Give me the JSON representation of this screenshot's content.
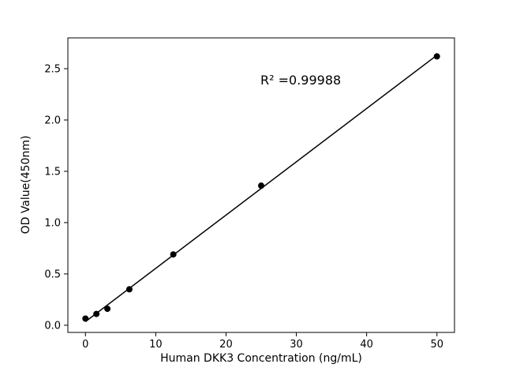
{
  "chart_data": {
    "type": "scatter",
    "title": "",
    "xlabel": "Human DKK3 Concentration (ng/mL)",
    "ylabel": "OD Value(450nm)",
    "annotation": "R² =0.99988",
    "x": [
      0,
      1.56,
      3.125,
      6.25,
      12.5,
      25,
      50
    ],
    "y": [
      0.065,
      0.11,
      0.16,
      0.35,
      0.69,
      1.36,
      2.62
    ],
    "xlim": [
      -2.5,
      52.5
    ],
    "ylim": [
      -0.07,
      2.8
    ],
    "xticks": [
      0,
      10,
      20,
      30,
      40,
      50
    ],
    "xtick_labels": [
      "0",
      "10",
      "20",
      "30",
      "40",
      "50"
    ],
    "yticks": [
      0.0,
      0.5,
      1.0,
      1.5,
      2.0,
      2.5
    ],
    "ytick_labels": [
      "0.0",
      "0.5",
      "1.0",
      "1.5",
      "2.0",
      "2.5"
    ],
    "line_color": "#000000",
    "marker_color": "#000000",
    "marker_radius": 4,
    "grid": false,
    "legend": false
  }
}
